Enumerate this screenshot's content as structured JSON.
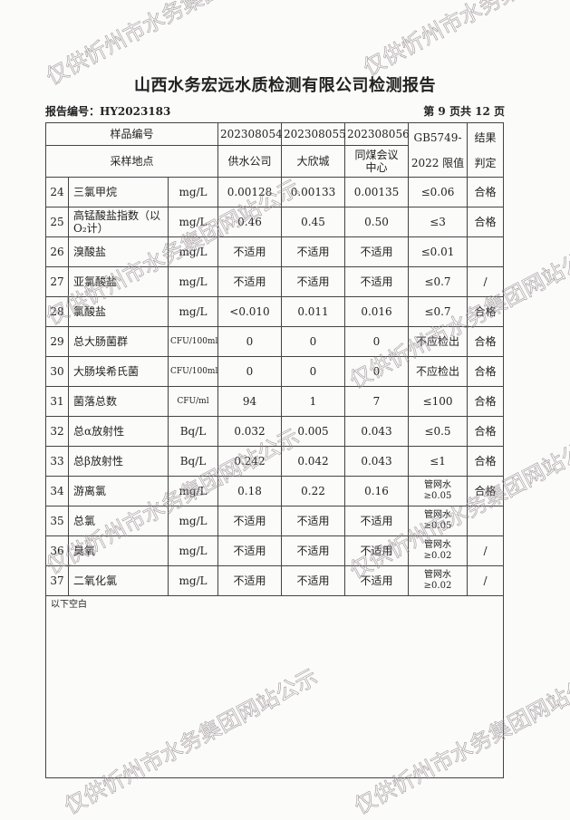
{
  "title": "山西水务宏远水质检测有限公司检测报告",
  "report_no": "报告编号：HY2023183",
  "page_info": "第 9 页共 12 页",
  "header": {
    "sample_no_label": "样品编号",
    "location_label": "采样地点",
    "samples": [
      {
        "id": "202308054",
        "location": "供水公司"
      },
      {
        "id": "202308055",
        "location": "大欣城"
      },
      {
        "id": "202308056",
        "location": "同煤会议中心"
      }
    ],
    "limit_label_1": "GB5749-",
    "limit_label_2": "2022 限值",
    "result_label_1": "结果",
    "result_label_2": "判定"
  },
  "rows": [
    {
      "no": "24",
      "item": "三氯甲烷",
      "unit": "mg/L",
      "v1": "0.00128",
      "v2": "0.00133",
      "v3": "0.00135",
      "limit": "≤0.06",
      "result": "合格"
    },
    {
      "no": "25",
      "item": "高锰酸盐指数（以O₂计）",
      "unit": "mg/L",
      "v1": "0.46",
      "v2": "0.45",
      "v3": "0.50",
      "limit": "≤3",
      "result": "合格"
    },
    {
      "no": "26",
      "item": "溴酸盐",
      "unit": "mg/L",
      "v1": "不适用",
      "v2": "不适用",
      "v3": "不适用",
      "limit": "≤0.01",
      "result": ""
    },
    {
      "no": "27",
      "item": "亚氯酸盐",
      "unit": "mg/L",
      "v1": "不适用",
      "v2": "不适用",
      "v3": "不适用",
      "limit": "≤0.7",
      "result": "/"
    },
    {
      "no": "28",
      "item": "氯酸盐",
      "unit": "mg/L",
      "v1": "<0.010",
      "v2": "0.011",
      "v3": "0.016",
      "limit": "≤0.7",
      "result": "合格"
    },
    {
      "no": "29",
      "item": "总大肠菌群",
      "unit": "CFU/100ml",
      "v1": "0",
      "v2": "0",
      "v3": "0",
      "limit": "不应检出",
      "result": "合格"
    },
    {
      "no": "30",
      "item": "大肠埃希氏菌",
      "unit": "CFU/100ml",
      "v1": "0",
      "v2": "0",
      "v3": "0",
      "limit": "不应检出",
      "result": "合格"
    },
    {
      "no": "31",
      "item": "菌落总数",
      "unit": "CFU/ml",
      "v1": "94",
      "v2": "1",
      "v3": "7",
      "limit": "≤100",
      "result": "合格"
    },
    {
      "no": "32",
      "item": "总α放射性",
      "unit": "Bq/L",
      "v1": "0.032",
      "v2": "0.005",
      "v3": "0.043",
      "limit": "≤0.5",
      "result": "合格"
    },
    {
      "no": "33",
      "item": "总β放射性",
      "unit": "Bq/L",
      "v1": "0.242",
      "v2": "0.042",
      "v3": "0.043",
      "limit": "≤1",
      "result": "合格"
    },
    {
      "no": "34",
      "item": "游离氯",
      "unit": "mg/L",
      "v1": "0.18",
      "v2": "0.22",
      "v3": "0.16",
      "limit": "管网水≥0.05",
      "result": "合格"
    },
    {
      "no": "35",
      "item": "总氯",
      "unit": "mg/L",
      "v1": "不适用",
      "v2": "不适用",
      "v3": "不适用",
      "limit": "管网水≥0.05",
      "result": ""
    },
    {
      "no": "36",
      "item": "臭氧",
      "unit": "mg/L",
      "v1": "不适用",
      "v2": "不适用",
      "v3": "不适用",
      "limit": "管网水≥0.02",
      "result": "/"
    },
    {
      "no": "37",
      "item": "二氧化氯",
      "unit": "mg/L",
      "v1": "不适用",
      "v2": "不适用",
      "v3": "不适用",
      "limit": "管网水≥0.02",
      "result": "/"
    }
  ],
  "blank_note": "以下空白",
  "watermark": "仅供忻州市水务集团网站公示"
}
